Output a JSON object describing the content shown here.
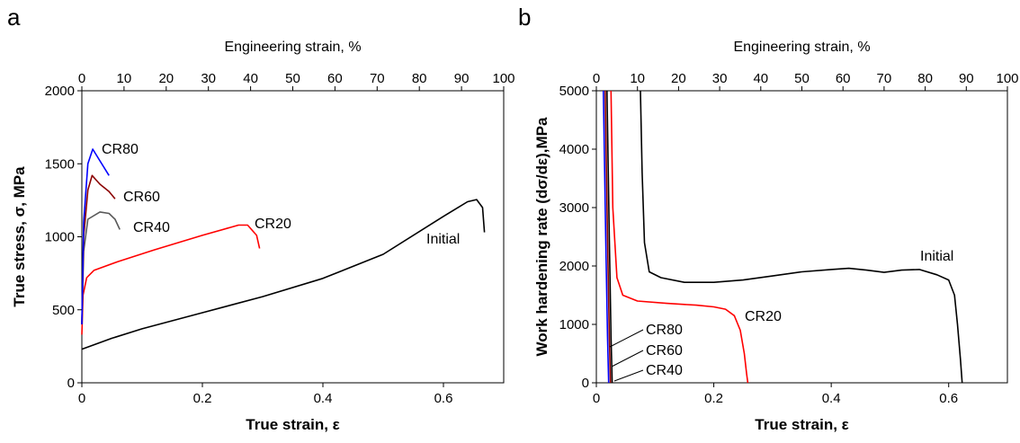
{
  "chart_data": [
    {
      "panel_label": "a",
      "type": "line",
      "xlabel": "True strain, ε",
      "ylabel": "True stress, σ, MPa",
      "top_xlabel": "Engineering strain, %",
      "xlim": [
        0,
        0.7
      ],
      "ylim": [
        0,
        2000
      ],
      "top_xlim": [
        0,
        100
      ],
      "x_ticks": [
        "0",
        "0.2",
        "0.4",
        "0.6"
      ],
      "y_ticks": [
        "0",
        "500",
        "1000",
        "1500",
        "2000"
      ],
      "top_ticks": [
        "0",
        "10",
        "20",
        "30",
        "40",
        "50",
        "60",
        "70",
        "80",
        "90",
        "100"
      ],
      "series": [
        {
          "name": "Initial",
          "color": "#000000",
          "x": [
            0.0,
            0.05,
            0.1,
            0.2,
            0.3,
            0.4,
            0.5,
            0.6,
            0.64,
            0.655,
            0.665,
            0.668
          ],
          "y": [
            230,
            305,
            370,
            480,
            590,
            715,
            880,
            1140,
            1240,
            1255,
            1200,
            1030
          ]
        },
        {
          "name": "CR20",
          "color": "#ff0000",
          "x": [
            0.0,
            0.002,
            0.008,
            0.02,
            0.06,
            0.12,
            0.2,
            0.26,
            0.275,
            0.29,
            0.295
          ],
          "y": [
            330,
            600,
            720,
            770,
            830,
            910,
            1010,
            1080,
            1080,
            1010,
            920
          ]
        },
        {
          "name": "CR40",
          "color": "#595959",
          "x": [
            0.0,
            0.003,
            0.01,
            0.03,
            0.045,
            0.055,
            0.063
          ],
          "y": [
            400,
            900,
            1120,
            1170,
            1160,
            1120,
            1050
          ]
        },
        {
          "name": "CR60",
          "color": "#8b0000",
          "x": [
            0.0,
            0.003,
            0.01,
            0.017,
            0.03,
            0.045,
            0.055
          ],
          "y": [
            400,
            1000,
            1320,
            1420,
            1360,
            1310,
            1260
          ]
        },
        {
          "name": "CR80",
          "color": "#0000ff",
          "x": [
            0.0,
            0.003,
            0.01,
            0.018,
            0.03,
            0.045
          ],
          "y": [
            400,
            1100,
            1500,
            1600,
            1520,
            1420
          ]
        }
      ]
    },
    {
      "panel_label": "b",
      "type": "line",
      "xlabel": "True strain, ε",
      "ylabel": "Work hardening rate (dσ/dε),MPa",
      "top_xlabel": "Engineering strain, %",
      "xlim": [
        0,
        0.7
      ],
      "ylim": [
        0,
        5000
      ],
      "top_xlim": [
        0,
        100
      ],
      "x_ticks": [
        "0",
        "0.2",
        "0.4",
        "0.6"
      ],
      "y_ticks": [
        "0",
        "1000",
        "2000",
        "3000",
        "4000",
        "5000"
      ],
      "top_ticks": [
        "0",
        "10",
        "20",
        "30",
        "40",
        "50",
        "60",
        "70",
        "80",
        "90",
        "100"
      ],
      "series": [
        {
          "name": "Initial",
          "color": "#000000",
          "x": [
            0.075,
            0.078,
            0.082,
            0.09,
            0.11,
            0.15,
            0.2,
            0.25,
            0.3,
            0.35,
            0.4,
            0.43,
            0.46,
            0.49,
            0.52,
            0.55,
            0.58,
            0.6,
            0.61,
            0.615,
            0.62,
            0.623
          ],
          "y": [
            5000,
            3600,
            2400,
            1900,
            1800,
            1720,
            1720,
            1760,
            1830,
            1900,
            1940,
            1960,
            1930,
            1890,
            1930,
            1940,
            1850,
            1760,
            1500,
            1000,
            400,
            0
          ]
        },
        {
          "name": "CR20",
          "color": "#ff0000",
          "x": [
            0.025,
            0.028,
            0.035,
            0.045,
            0.07,
            0.12,
            0.17,
            0.2,
            0.22,
            0.235,
            0.245,
            0.252,
            0.256,
            0.258
          ],
          "y": [
            5000,
            3000,
            1800,
            1500,
            1400,
            1360,
            1330,
            1300,
            1260,
            1150,
            900,
            500,
            150,
            0
          ]
        },
        {
          "name": "CR40",
          "color": "#000000",
          "x": [
            0.018,
            0.022,
            0.025,
            0.027
          ],
          "y": [
            5000,
            2500,
            800,
            0
          ]
        },
        {
          "name": "CR60",
          "color": "#8b0000",
          "x": [
            0.015,
            0.019,
            0.022,
            0.024
          ],
          "y": [
            5000,
            2500,
            800,
            0
          ]
        },
        {
          "name": "CR80",
          "color": "#0000ff",
          "x": [
            0.012,
            0.016,
            0.019,
            0.021
          ],
          "y": [
            5000,
            2500,
            800,
            0
          ]
        }
      ]
    }
  ],
  "annotations_a": [
    "CR80",
    "CR60",
    "CR40",
    "CR20",
    "Initial"
  ],
  "annotations_b": [
    "Initial",
    "CR20",
    "CR80",
    "CR60",
    "CR40"
  ]
}
